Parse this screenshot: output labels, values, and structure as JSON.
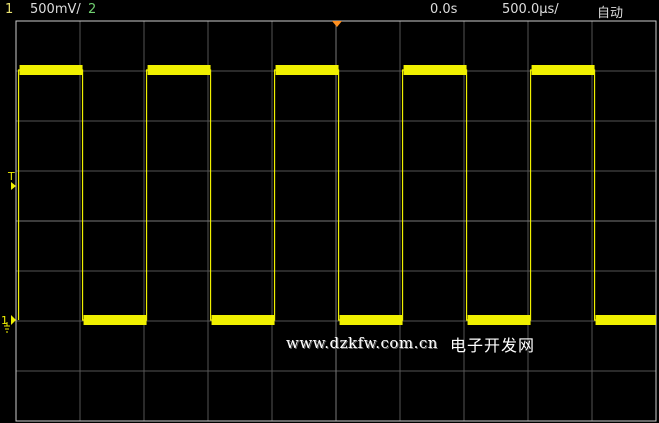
{
  "status_bar": {
    "channel1_label": "1",
    "channel1_scale": "500mV/",
    "channel2_label": "2",
    "time_offset": "0.0s",
    "timebase": "500.0µs/",
    "trigger_mode": "自动"
  },
  "markers": {
    "trigger_level": "T",
    "channel1_ground": "1"
  },
  "watermark": {
    "url": "www.dzkfw.com.cn",
    "name": "电子开发网"
  },
  "colors": {
    "channel1": "#f0f000",
    "channel1_label": "#e8e070",
    "channel2_label": "#70d070",
    "grid": "#555555",
    "trigger_marker": "#ff9020"
  },
  "chart_data": {
    "type": "line",
    "waveform": "square",
    "volts_per_div": 0.5,
    "seconds_per_div": 0.0005,
    "h_divisions": 10,
    "v_divisions": 8,
    "low_level_v": 0,
    "high_level_v": 2.5,
    "period_s": 0.001,
    "first_rising_edge_s": -0.00248,
    "grid": true
  }
}
